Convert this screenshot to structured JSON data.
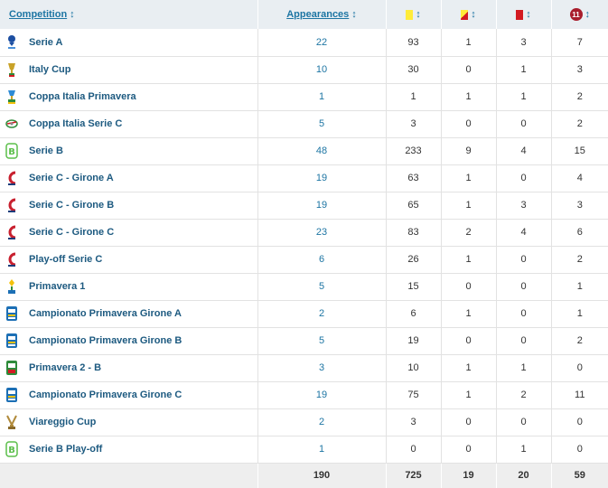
{
  "header": {
    "competition": "Competition",
    "appearances": "Appearances",
    "sort_glyph": "↕",
    "subs_badge": "11"
  },
  "rows": [
    {
      "name": "Serie A",
      "logo": "serie-a-logo",
      "apps": "22",
      "yellow": "93",
      "yellow_red": "1",
      "red": "3",
      "subbed_off": "7"
    },
    {
      "name": "Italy Cup",
      "logo": "coppa-italia-logo",
      "apps": "10",
      "yellow": "30",
      "yellow_red": "0",
      "red": "1",
      "subbed_off": "3"
    },
    {
      "name": "Coppa Italia Primavera",
      "logo": "coppa-italia-primavera-logo",
      "apps": "1",
      "yellow": "1",
      "yellow_red": "1",
      "red": "1",
      "subbed_off": "2"
    },
    {
      "name": "Coppa Italia Serie C",
      "logo": "coppa-italia-serie-c-logo",
      "apps": "5",
      "yellow": "3",
      "yellow_red": "0",
      "red": "0",
      "subbed_off": "2"
    },
    {
      "name": "Serie B",
      "logo": "serie-b-logo",
      "apps": "48",
      "yellow": "233",
      "yellow_red": "9",
      "red": "4",
      "subbed_off": "15"
    },
    {
      "name": "Serie C - Girone A",
      "logo": "serie-c-logo",
      "apps": "19",
      "yellow": "63",
      "yellow_red": "1",
      "red": "0",
      "subbed_off": "4"
    },
    {
      "name": "Serie C - Girone B",
      "logo": "serie-c-logo",
      "apps": "19",
      "yellow": "65",
      "yellow_red": "1",
      "red": "3",
      "subbed_off": "3"
    },
    {
      "name": "Serie C - Girone C",
      "logo": "serie-c-logo",
      "apps": "23",
      "yellow": "83",
      "yellow_red": "2",
      "red": "4",
      "subbed_off": "6"
    },
    {
      "name": "Play-off Serie C",
      "logo": "serie-c-logo",
      "apps": "6",
      "yellow": "26",
      "yellow_red": "1",
      "red": "0",
      "subbed_off": "2"
    },
    {
      "name": "Primavera 1",
      "logo": "primavera-1-logo",
      "apps": "5",
      "yellow": "15",
      "yellow_red": "0",
      "red": "0",
      "subbed_off": "1"
    },
    {
      "name": "Campionato Primavera Girone A",
      "logo": "campionato-primavera-logo",
      "apps": "2",
      "yellow": "6",
      "yellow_red": "1",
      "red": "0",
      "subbed_off": "1"
    },
    {
      "name": "Campionato Primavera Girone B",
      "logo": "campionato-primavera-logo",
      "apps": "5",
      "yellow": "19",
      "yellow_red": "0",
      "red": "0",
      "subbed_off": "2"
    },
    {
      "name": "Primavera 2 - B",
      "logo": "primavera-2-logo",
      "apps": "3",
      "yellow": "10",
      "yellow_red": "1",
      "red": "1",
      "subbed_off": "0"
    },
    {
      "name": "Campionato Primavera Girone C",
      "logo": "campionato-primavera-logo",
      "apps": "19",
      "yellow": "75",
      "yellow_red": "1",
      "red": "2",
      "subbed_off": "11"
    },
    {
      "name": "Viareggio Cup",
      "logo": "viareggio-cup-logo",
      "apps": "2",
      "yellow": "3",
      "yellow_red": "0",
      "red": "0",
      "subbed_off": "0"
    },
    {
      "name": "Serie B Play-off",
      "logo": "serie-b-logo",
      "apps": "1",
      "yellow": "0",
      "yellow_red": "0",
      "red": "1",
      "subbed_off": "0"
    }
  ],
  "totals": {
    "apps": "190",
    "yellow": "725",
    "yellow_red": "19",
    "red": "20",
    "subbed_off": "59"
  },
  "colors": {
    "header_bg": "#e9eef2",
    "link": "#1d75a3",
    "name": "#1d5a80",
    "yellow": "#ffec3a",
    "red": "#d31b22",
    "badge": "#a81d2c"
  }
}
